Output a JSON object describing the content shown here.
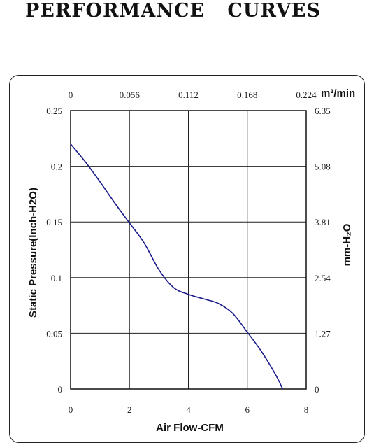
{
  "title": "PERFORMANCE    CURVES",
  "chart_data": {
    "type": "line",
    "xlabel": "Air Flow-CFM",
    "ylabel": "Static Pressure(Inch-H2O)",
    "x_ticks": [
      "0",
      "2",
      "4",
      "6",
      "8"
    ],
    "y_ticks": [
      "0",
      "0.05",
      "0.1",
      "0.15",
      "0.2",
      "0.25"
    ],
    "xlim": [
      0,
      8
    ],
    "ylim": [
      0,
      0.25
    ],
    "top_axis": {
      "unit_label": "m³/min",
      "ticks": [
        "0",
        "0.056",
        "0.112",
        "0.168",
        "0.224"
      ]
    },
    "right_axis": {
      "label": "mm-H₂O",
      "ticks": [
        "0",
        "1.27",
        "2.54",
        "3.81",
        "5.08",
        "6.35"
      ]
    },
    "grid": true,
    "line_color": "#1a1a8c",
    "series": [
      {
        "x": [
          0,
          0.5,
          1.0,
          1.5,
          2.0,
          2.5,
          3.0,
          3.5,
          4.0,
          4.5,
          5.0,
          5.5,
          6.0,
          6.5,
          7.0,
          7.2
        ],
        "y": [
          0.22,
          0.204,
          0.186,
          0.167,
          0.149,
          0.131,
          0.107,
          0.091,
          0.085,
          0.081,
          0.077,
          0.068,
          0.051,
          0.033,
          0.011,
          0.0
        ]
      }
    ]
  }
}
